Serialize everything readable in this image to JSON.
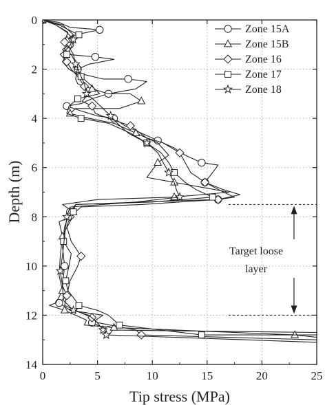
{
  "chart_data": {
    "type": "line",
    "xlabel": "Tip stress (MPa)",
    "ylabel": "Depth (m)",
    "xlim": [
      0,
      25
    ],
    "ylim": [
      0,
      14
    ],
    "y_inverted": true,
    "x_ticks": [
      0,
      5,
      10,
      15,
      20,
      25
    ],
    "y_ticks": [
      0,
      2,
      4,
      6,
      8,
      10,
      12,
      14
    ],
    "grid": "dotted",
    "legend_position": "top-right",
    "series": [
      {
        "name": "Zone 15A",
        "marker": "circle",
        "points": [
          [
            0,
            0
          ],
          [
            1.5,
            0.1
          ],
          [
            2.5,
            0.3
          ],
          [
            5.2,
            0.4
          ],
          [
            3.0,
            0.6
          ],
          [
            2.2,
            0.8
          ],
          [
            2.5,
            1.0
          ],
          [
            1.8,
            1.2
          ],
          [
            2.2,
            1.4
          ],
          [
            4.8,
            1.5
          ],
          [
            6.5,
            1.6
          ],
          [
            4.2,
            1.8
          ],
          [
            3.2,
            2.0
          ],
          [
            3.6,
            2.2
          ],
          [
            5.5,
            2.4
          ],
          [
            7.8,
            2.4
          ],
          [
            9.5,
            2.5
          ],
          [
            8.5,
            2.8
          ],
          [
            6.0,
            3.0
          ],
          [
            4.5,
            3.2
          ],
          [
            3.5,
            3.4
          ],
          [
            2.2,
            3.5
          ],
          [
            3.5,
            3.7
          ],
          [
            5.0,
            3.9
          ],
          [
            6.5,
            4.0
          ],
          [
            7.5,
            4.3
          ],
          [
            9.0,
            4.6
          ],
          [
            10.5,
            4.9
          ],
          [
            12.0,
            5.2
          ],
          [
            13.0,
            5.5
          ],
          [
            14.5,
            5.8
          ],
          [
            16.0,
            5.9
          ],
          [
            15.5,
            6.2
          ],
          [
            14.8,
            6.6
          ],
          [
            16.5,
            6.9
          ],
          [
            18.0,
            7.1
          ],
          [
            16.0,
            7.3
          ],
          [
            9.0,
            7.4
          ],
          [
            3.0,
            7.5
          ],
          [
            2.5,
            7.8
          ],
          [
            2.0,
            8.4
          ],
          [
            1.8,
            9.2
          ],
          [
            2.0,
            10.0
          ],
          [
            1.8,
            10.8
          ],
          [
            2.2,
            11.2
          ],
          [
            1.5,
            11.5
          ],
          [
            2.5,
            11.8
          ],
          [
            5.5,
            12.0
          ],
          [
            4.5,
            12.3
          ],
          [
            6.0,
            12.6
          ],
          [
            25,
            12.7
          ]
        ]
      },
      {
        "name": "Zone 15B",
        "marker": "triangle",
        "points": [
          [
            0,
            0
          ],
          [
            1.8,
            0.2
          ],
          [
            2.8,
            0.6
          ],
          [
            2.2,
            0.8
          ],
          [
            2.0,
            1.2
          ],
          [
            2.6,
            1.4
          ],
          [
            3.2,
            1.9
          ],
          [
            3.0,
            2.4
          ],
          [
            3.2,
            2.6
          ],
          [
            4.5,
            2.8
          ],
          [
            6.0,
            3.0
          ],
          [
            8.0,
            3.0
          ],
          [
            9.0,
            3.3
          ],
          [
            7.0,
            3.6
          ],
          [
            3.0,
            3.6
          ],
          [
            2.5,
            3.8
          ],
          [
            4.2,
            4.0
          ],
          [
            6.5,
            4.2
          ],
          [
            8.5,
            4.6
          ],
          [
            10.5,
            5.0
          ],
          [
            11.5,
            5.5
          ],
          [
            10.5,
            5.8
          ],
          [
            10.0,
            6.1
          ],
          [
            9.5,
            6.4
          ],
          [
            12.0,
            6.6
          ],
          [
            14.5,
            6.8
          ],
          [
            17.0,
            7.0
          ],
          [
            12.0,
            7.2
          ],
          [
            5.0,
            7.3
          ],
          [
            1.8,
            7.5
          ],
          [
            2.8,
            7.8
          ],
          [
            2.6,
            8.0
          ],
          [
            1.5,
            8.2
          ],
          [
            1.8,
            8.8
          ],
          [
            1.6,
            9.6
          ],
          [
            1.5,
            10.4
          ],
          [
            1.8,
            11.0
          ],
          [
            1.2,
            11.5
          ],
          [
            0.6,
            11.6
          ],
          [
            2.0,
            11.8
          ],
          [
            4.0,
            12.2
          ],
          [
            3.8,
            12.4
          ],
          [
            6.5,
            12.5
          ],
          [
            23.0,
            12.8
          ],
          [
            25,
            12.9
          ]
        ]
      },
      {
        "name": "Zone 16",
        "marker": "diamond",
        "points": [
          [
            0,
            0
          ],
          [
            1.2,
            0.2
          ],
          [
            2.3,
            0.5
          ],
          [
            2.0,
            0.9
          ],
          [
            2.4,
            1.1
          ],
          [
            1.6,
            1.4
          ],
          [
            2.2,
            1.7
          ],
          [
            2.6,
            2.0
          ],
          [
            3.2,
            2.3
          ],
          [
            3.8,
            2.7
          ],
          [
            4.2,
            3.0
          ],
          [
            3.6,
            3.3
          ],
          [
            4.5,
            3.5
          ],
          [
            4.8,
            3.8
          ],
          [
            6.0,
            4.0
          ],
          [
            8.0,
            4.3
          ],
          [
            9.5,
            4.8
          ],
          [
            11.0,
            5.0
          ],
          [
            12.5,
            5.4
          ],
          [
            13.0,
            5.8
          ],
          [
            13.5,
            6.2
          ],
          [
            14.8,
            6.6
          ],
          [
            16.5,
            7.0
          ],
          [
            17.5,
            7.2
          ],
          [
            16.0,
            7.3
          ],
          [
            9.0,
            7.5
          ],
          [
            3.5,
            7.6
          ],
          [
            2.5,
            8.0
          ],
          [
            2.2,
            8.4
          ],
          [
            2.6,
            9.0
          ],
          [
            3.5,
            9.6
          ],
          [
            3.2,
            10.0
          ],
          [
            2.5,
            10.6
          ],
          [
            2.2,
            11.2
          ],
          [
            2.0,
            11.6
          ],
          [
            3.0,
            11.8
          ],
          [
            4.5,
            12.1
          ],
          [
            5.0,
            12.3
          ],
          [
            8.5,
            12.6
          ],
          [
            9.0,
            12.8
          ],
          [
            25,
            13.0
          ]
        ]
      },
      {
        "name": "Zone 17",
        "marker": "square",
        "points": [
          [
            0,
            0
          ],
          [
            1.5,
            0.2
          ],
          [
            2.8,
            0.5
          ],
          [
            3.3,
            0.6
          ],
          [
            2.8,
            0.9
          ],
          [
            2.5,
            1.2
          ],
          [
            2.2,
            1.4
          ],
          [
            1.8,
            1.7
          ],
          [
            2.4,
            2.0
          ],
          [
            3.5,
            2.3
          ],
          [
            4.5,
            2.7
          ],
          [
            5.2,
            3.0
          ],
          [
            3.2,
            3.2
          ],
          [
            2.4,
            3.5
          ],
          [
            2.2,
            3.8
          ],
          [
            3.5,
            4.0
          ],
          [
            6.0,
            4.2
          ],
          [
            8.0,
            4.6
          ],
          [
            9.5,
            5.0
          ],
          [
            10.8,
            5.4
          ],
          [
            11.5,
            5.8
          ],
          [
            12.0,
            6.2
          ],
          [
            13.0,
            6.6
          ],
          [
            14.0,
            6.9
          ],
          [
            15.5,
            7.2
          ],
          [
            10.0,
            7.4
          ],
          [
            3.0,
            7.5
          ],
          [
            2.8,
            7.8
          ],
          [
            2.5,
            8.2
          ],
          [
            2.0,
            8.6
          ],
          [
            1.9,
            9.0
          ],
          [
            2.6,
            9.5
          ],
          [
            2.4,
            10.0
          ],
          [
            2.1,
            10.6
          ],
          [
            2.3,
            11.0
          ],
          [
            3.0,
            11.4
          ],
          [
            3.3,
            11.6
          ],
          [
            5.0,
            11.8
          ],
          [
            6.0,
            12.0
          ],
          [
            7.0,
            12.4
          ],
          [
            14.5,
            12.8
          ],
          [
            25,
            12.8
          ]
        ]
      },
      {
        "name": "Zone 18",
        "marker": "star",
        "points": [
          [
            0,
            0
          ],
          [
            1.2,
            0.2
          ],
          [
            2.2,
            0.5
          ],
          [
            2.8,
            0.8
          ],
          [
            2.4,
            1.1
          ],
          [
            2.8,
            1.4
          ],
          [
            3.0,
            1.8
          ],
          [
            3.4,
            2.2
          ],
          [
            3.8,
            2.6
          ],
          [
            4.0,
            3.0
          ],
          [
            4.8,
            3.3
          ],
          [
            5.5,
            3.6
          ],
          [
            6.2,
            3.9
          ],
          [
            6.8,
            4.2
          ],
          [
            7.8,
            4.6
          ],
          [
            9.5,
            5.0
          ],
          [
            10.5,
            5.4
          ],
          [
            11.0,
            5.8
          ],
          [
            11.5,
            6.2
          ],
          [
            12.0,
            6.6
          ],
          [
            12.2,
            6.9
          ],
          [
            12.5,
            7.2
          ],
          [
            8.5,
            7.4
          ],
          [
            2.5,
            7.6
          ],
          [
            2.2,
            8.0
          ],
          [
            2.0,
            8.8
          ],
          [
            1.8,
            9.6
          ],
          [
            1.6,
            10.2
          ],
          [
            1.8,
            10.8
          ],
          [
            1.9,
            11.4
          ],
          [
            2.8,
            11.8
          ],
          [
            4.2,
            12.0
          ],
          [
            5.0,
            12.3
          ],
          [
            5.5,
            12.6
          ],
          [
            5.8,
            12.8
          ],
          [
            25,
            13.1
          ]
        ]
      }
    ],
    "annotation": {
      "lines": [
        "Target loose",
        "layer"
      ],
      "range_depth": [
        7.5,
        12.0
      ]
    }
  },
  "colors": {
    "ink": "#222222",
    "grid": "#b0b0b0"
  }
}
